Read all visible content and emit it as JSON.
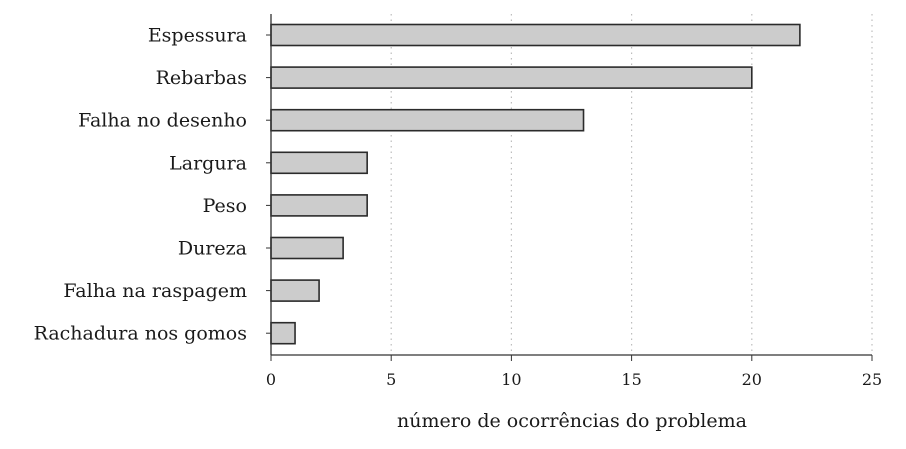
{
  "chart_data": {
    "type": "bar",
    "orientation": "horizontal",
    "categories": [
      "Espessura",
      "Rebarbas",
      "Falha no desenho",
      "Largura",
      "Peso",
      "Dureza",
      "Falha na raspagem",
      "Rachadura nos gomos"
    ],
    "values": [
      22,
      20,
      13,
      4,
      4,
      3,
      2,
      1
    ],
    "title": "",
    "xlabel": "número de ocorrências do problema",
    "ylabel": "",
    "xlim": [
      0,
      25
    ],
    "xticks": [
      0,
      5,
      10,
      15,
      20,
      25
    ],
    "xtick_labels": [
      "0",
      "5",
      "10",
      "15",
      "20",
      "25"
    ],
    "grid": "vertical dotted",
    "legend": "none",
    "colors": {
      "bar_fill": "#cccccc",
      "bar_stroke": "#2b2b2b",
      "axis": "#333333",
      "grid": "#bdbdbd",
      "text": "#1a1a1a"
    }
  }
}
